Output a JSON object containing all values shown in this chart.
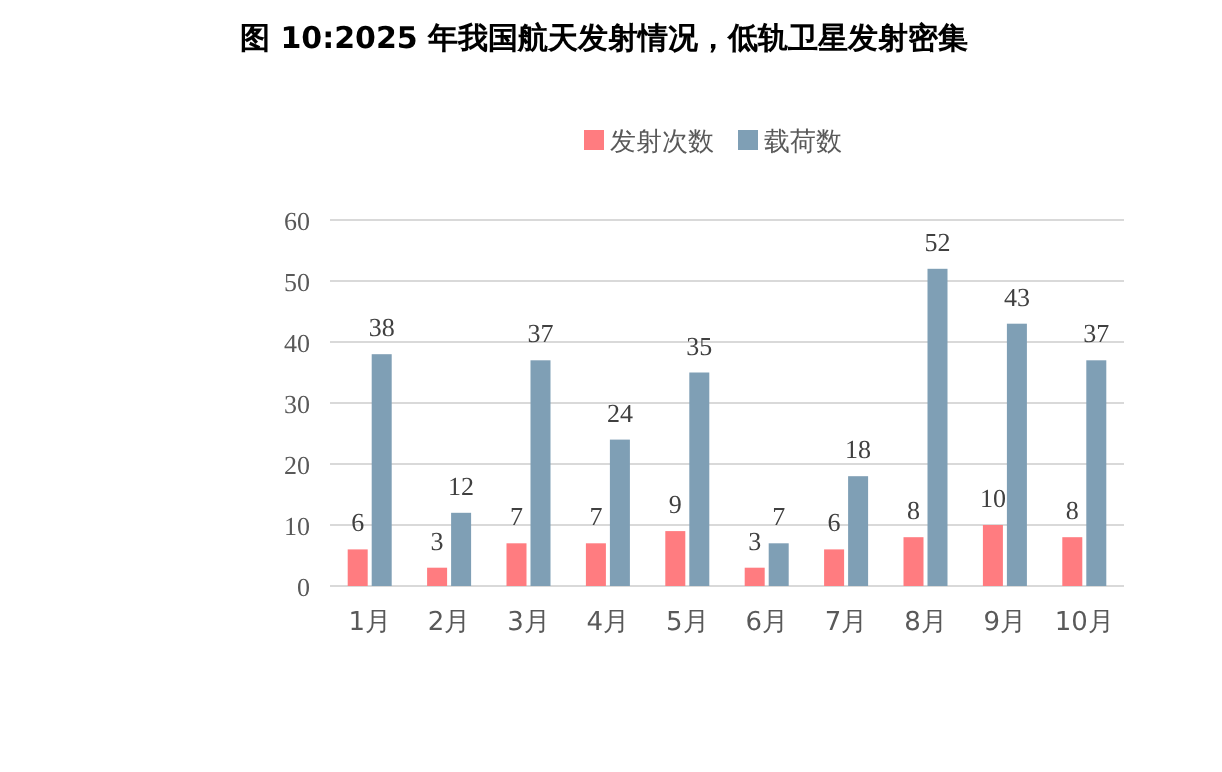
{
  "chart_data": {
    "type": "bar",
    "title": "图 10:2025 年我国航天发射情况，低轨卫星发射密集",
    "categories": [
      "1月",
      "2月",
      "3月",
      "4月",
      "5月",
      "6月",
      "7月",
      "8月",
      "9月",
      "10月"
    ],
    "series": [
      {
        "name": "发射次数",
        "color": "#ff7c80",
        "values": [
          6,
          3,
          7,
          7,
          9,
          3,
          6,
          8,
          10,
          8
        ]
      },
      {
        "name": "载荷数",
        "color": "#7f9fb5",
        "values": [
          38,
          12,
          37,
          24,
          35,
          7,
          18,
          52,
          43,
          37
        ]
      }
    ],
    "ylim": [
      0,
      60
    ],
    "yticks": [
      0,
      10,
      20,
      30,
      40,
      50,
      60
    ],
    "grid": "y",
    "legend": "top",
    "data_labels": true
  }
}
